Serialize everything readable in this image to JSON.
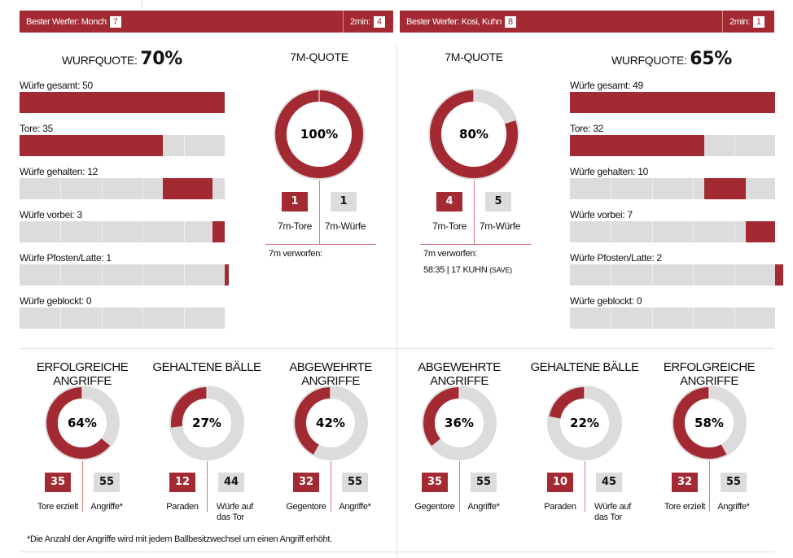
{
  "colors": {
    "accent": "#a32a33",
    "grey": "#dcdcdc"
  },
  "home": {
    "best_label": "Bester Werfer: Monch",
    "best_num": "7",
    "twomin_label": "2min:",
    "twomin_num": "4",
    "wurfquote_label": "WURFQUOTE:",
    "wurfquote": "70%",
    "bars": [
      {
        "label": "Würfe gesamt: 50"
      },
      {
        "label": "Tore: 35"
      },
      {
        "label": "Würfe gehalten: 12"
      },
      {
        "label": "Würfe vorbei: 3"
      },
      {
        "label": "Würfe Pfosten/Latte: 1"
      },
      {
        "label": "Würfe geblockt: 0"
      }
    ],
    "total": 50,
    "counts": [
      35,
      12,
      3,
      1,
      0
    ],
    "seven": {
      "title": "7M-QUOTE",
      "pct": "100%",
      "value": 1.0,
      "tore": "1",
      "wuerfe": "1",
      "tore_label": "7m-Tore",
      "wuerfe_label": "7m-Würfe",
      "verworfen_label": "7m verworfen:",
      "verworfen": ""
    },
    "charts": [
      {
        "title": "ERFOLGREICHE ANGRIFFE",
        "pct": "64%",
        "value": 0.64,
        "a": "35",
        "b": "55",
        "a_label": "Tore erzielt",
        "b_label": "Angriffe*"
      },
      {
        "title": "GEHALTENE BÄLLE",
        "pct": "27%",
        "value": 0.27,
        "a": "12",
        "b": "44",
        "a_label": "Paraden",
        "b_label": "Würfe auf das Tor"
      },
      {
        "title": "ABGEWEHRTE ANGRIFFE",
        "pct": "42%",
        "value": 0.42,
        "a": "32",
        "b": "55",
        "a_label": "Gegentore",
        "b_label": "Angriffe*"
      }
    ]
  },
  "away": {
    "best_label": "Bester Werfer: Kosi, Kuhn",
    "best_num": "8",
    "twomin_label": "2min:",
    "twomin_num": "1",
    "wurfquote_label": "WURFQUOTE:",
    "wurfquote": "65%",
    "bars": [
      {
        "label": "Würfe gesamt: 49"
      },
      {
        "label": "Tore: 32"
      },
      {
        "label": "Würfe gehalten: 10"
      },
      {
        "label": "Würfe vorbei: 7"
      },
      {
        "label": "Würfe Pfosten/Latte: 2"
      },
      {
        "label": "Würfe geblockt: 0"
      }
    ],
    "total": 49,
    "counts": [
      32,
      10,
      7,
      2,
      0
    ],
    "seven": {
      "title": "7M-QUOTE",
      "pct": "80%",
      "value": 0.8,
      "tore": "4",
      "wuerfe": "5",
      "tore_label": "7m-Tore",
      "wuerfe_label": "7m-Würfe",
      "verworfen_label": "7m verworfen:",
      "verworfen": "58:35 | 17 KUHN",
      "verworfen_note": "(SAVE)"
    },
    "charts": [
      {
        "title": "ABGEWEHRTE ANGRIFFE",
        "pct": "36%",
        "value": 0.36,
        "a": "35",
        "b": "55",
        "a_label": "Gegentore",
        "b_label": "Angriffe*"
      },
      {
        "title": "GEHALTENE BÄLLE",
        "pct": "22%",
        "value": 0.22,
        "a": "10",
        "b": "45",
        "a_label": "Paraden",
        "b_label": "Würfe auf das Tor"
      },
      {
        "title": "ERFOLGREICHE ANGRIFFE",
        "pct": "58%",
        "value": 0.58,
        "a": "32",
        "b": "55",
        "a_label": "Tore erzielt",
        "b_label": "Angriffe*"
      }
    ]
  },
  "footnote": "*Die Anzahl der Angriffe wird mit jedem Ballbesitzwechsel um einen Angriff erhöht."
}
